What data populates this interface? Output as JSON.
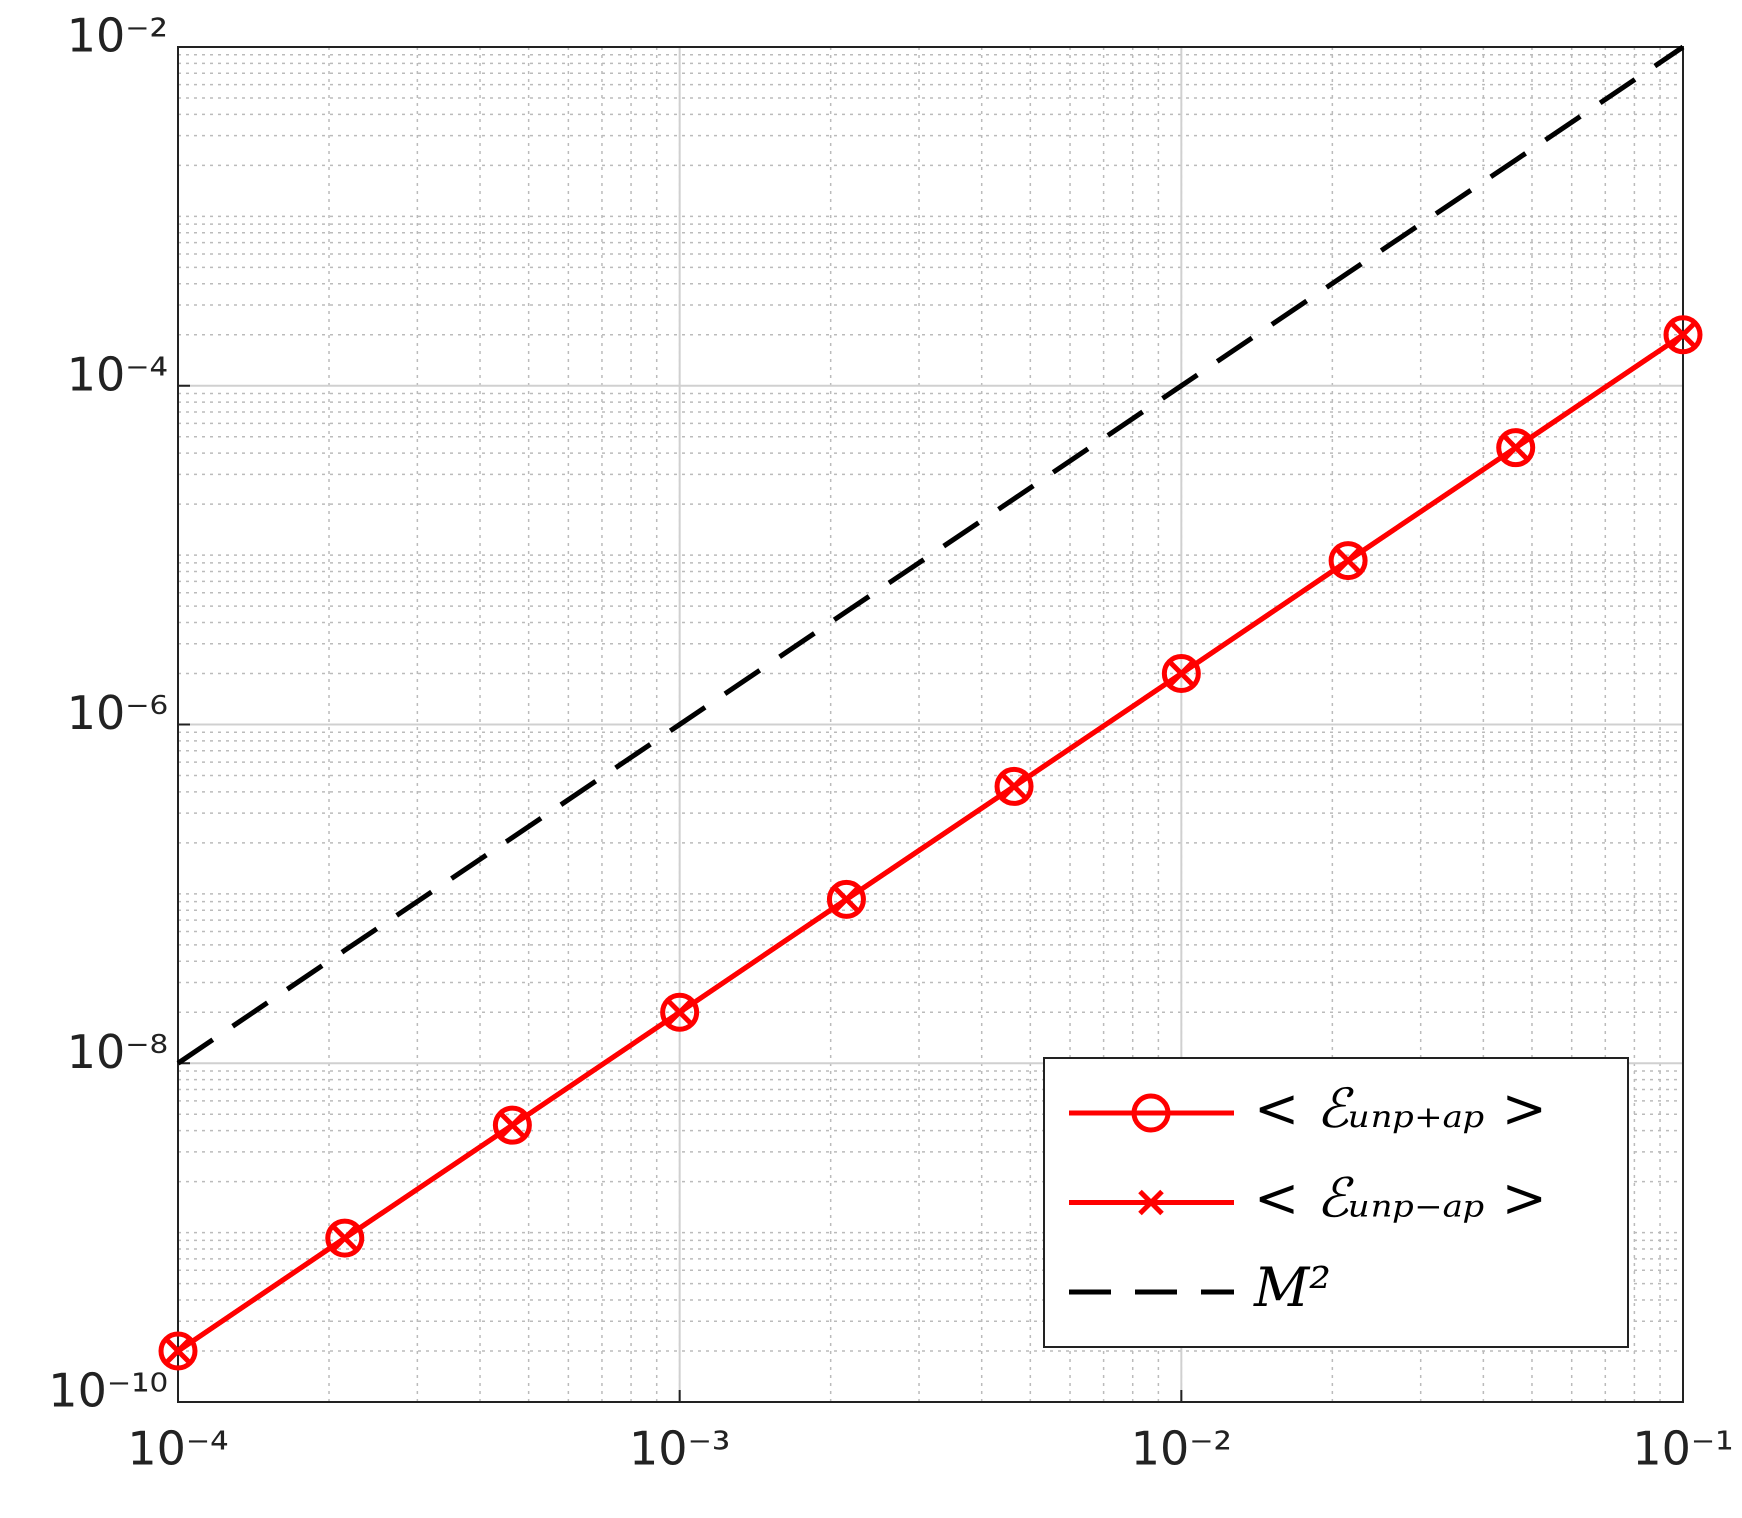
{
  "chart_data": {
    "type": "line",
    "x": [
      0.0001,
      0.000215,
      0.000464,
      0.001,
      0.00215,
      0.00464,
      0.01,
      0.0215,
      0.0464,
      0.1
    ],
    "series": [
      {
        "name": "< ℰᵤₙₚ₊ₐₚ >",
        "color": "#ff0000",
        "marker": "circle",
        "dash": false,
        "values": [
          2e-10,
          9.28e-10,
          4.31e-09,
          2e-08,
          9.28e-08,
          4.31e-07,
          2e-06,
          9.28e-06,
          4.31e-05,
          0.0002
        ]
      },
      {
        "name": "< ℰᵤₙₚ₋ₐₚ >",
        "color": "#ff0000",
        "marker": "x",
        "dash": false,
        "values": [
          2e-10,
          9.28e-10,
          4.31e-09,
          2e-08,
          9.28e-08,
          4.31e-07,
          2e-06,
          9.28e-06,
          4.31e-05,
          0.0002
        ]
      },
      {
        "name": "M²",
        "color": "#000000",
        "marker": "none",
        "dash": true,
        "values": [
          1e-08,
          4.64e-08,
          2.15e-07,
          1e-06,
          4.64e-06,
          2.15e-05,
          0.0001,
          0.000464,
          0.00215,
          0.01
        ]
      }
    ],
    "xscale": "log",
    "yscale": "log",
    "xlim": [
      0.0001,
      0.1
    ],
    "ylim": [
      1e-10,
      0.01
    ],
    "xticks": [
      {
        "value": 0.0001,
        "label": "10⁻⁴"
      },
      {
        "value": 0.001,
        "label": "10⁻³"
      },
      {
        "value": 0.01,
        "label": "10⁻²"
      },
      {
        "value": 0.1,
        "label": "10⁻¹"
      }
    ],
    "yticks": [
      {
        "value": 1e-10,
        "label": "10⁻¹⁰"
      },
      {
        "value": 1e-08,
        "label": "10⁻⁸"
      },
      {
        "value": 1e-06,
        "label": "10⁻⁶"
      },
      {
        "value": 0.0001,
        "label": "10⁻⁴"
      },
      {
        "value": 0.01,
        "label": "10⁻²"
      }
    ],
    "grid": true,
    "minor_grid": true,
    "legend": "lower right"
  }
}
